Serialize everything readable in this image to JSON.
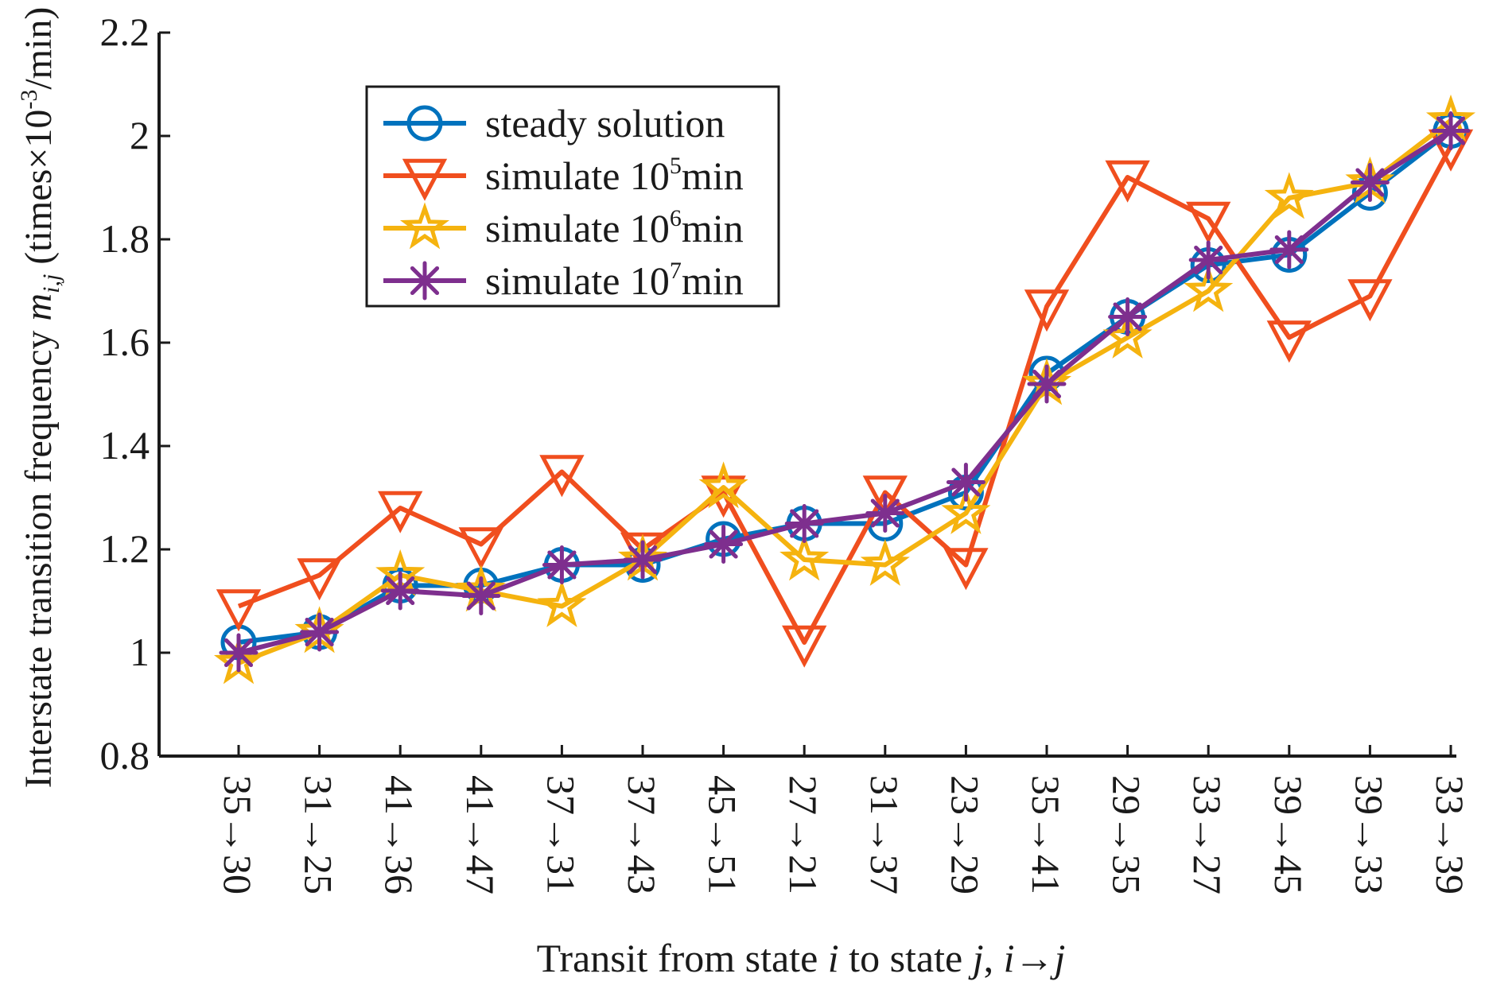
{
  "chart_data": {
    "type": "line",
    "title": "",
    "xlabel": {
      "prefix": "Transit from state ",
      "i": "i",
      "mid": " to state ",
      "j": "j",
      "sep": ", ",
      "i2": "i",
      "arrow": "→",
      "j2": "j"
    },
    "ylabel": {
      "main": "Interstate transition frequency ",
      "var": "m",
      "sub": "i,j",
      "unit_open": " (times×10",
      "unit_exp": "-3",
      "unit_close": "/min)"
    },
    "ylim": [
      0.8,
      2.2
    ],
    "yticks": [
      "0.8",
      "1",
      "1.2",
      "1.4",
      "1.6",
      "1.8",
      "2",
      "2.2"
    ],
    "ytick_values": [
      0.8,
      1.0,
      1.2,
      1.4,
      1.6,
      1.8,
      2.0,
      2.2
    ],
    "categories": [
      "35→30",
      "31→25",
      "41→36",
      "41→47",
      "37→31",
      "37→43",
      "45→51",
      "27→21",
      "31→37",
      "23→29",
      "35→41",
      "29→35",
      "33→27",
      "39→45",
      "39→33",
      "33→39"
    ],
    "legend_position": "top-left",
    "series": [
      {
        "name": "steady solution",
        "label": "steady solution",
        "label_sup": "",
        "label_after": "",
        "marker": "circle",
        "color": "#0072BD",
        "values": [
          1.02,
          1.04,
          1.13,
          1.13,
          1.17,
          1.17,
          1.22,
          1.25,
          1.25,
          1.31,
          1.54,
          1.65,
          1.75,
          1.77,
          1.89,
          2.01
        ]
      },
      {
        "name": "simulate 10^5 min",
        "label": "simulate 10",
        "label_sup": "5",
        "label_after": "min",
        "marker": "triangle-down",
        "color": "#F04E1E",
        "values": [
          1.09,
          1.15,
          1.28,
          1.21,
          1.35,
          1.2,
          1.31,
          1.02,
          1.31,
          1.17,
          1.67,
          1.92,
          1.84,
          1.61,
          1.69,
          1.98
        ]
      },
      {
        "name": "simulate 10^6 min",
        "label": "simulate 10",
        "label_sup": "6",
        "label_after": "min",
        "marker": "star",
        "color": "#F5B30F",
        "values": [
          0.98,
          1.04,
          1.15,
          1.12,
          1.09,
          1.18,
          1.32,
          1.18,
          1.17,
          1.27,
          1.52,
          1.61,
          1.7,
          1.88,
          1.91,
          2.03
        ]
      },
      {
        "name": "simulate 10^7 min",
        "label": "simulate 10",
        "label_sup": "7",
        "label_after": "min",
        "marker": "asterisk",
        "color": "#7E2F8E",
        "values": [
          1.0,
          1.04,
          1.12,
          1.11,
          1.17,
          1.18,
          1.21,
          1.25,
          1.27,
          1.33,
          1.52,
          1.65,
          1.76,
          1.78,
          1.91,
          2.01
        ]
      }
    ]
  }
}
